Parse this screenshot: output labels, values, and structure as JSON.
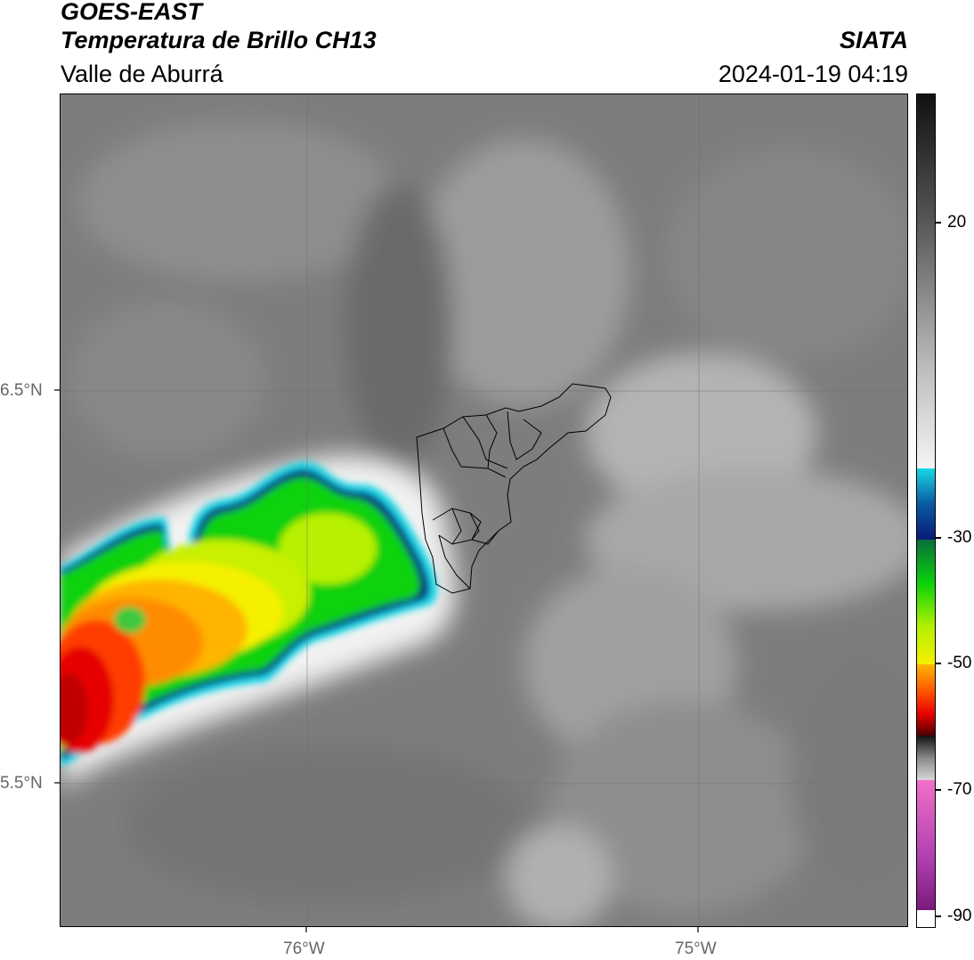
{
  "header": {
    "satellite": "GOES-EAST",
    "product": "Temperatura de Brillo CH13",
    "region": "Valle de Aburrá",
    "organization": "SIATA",
    "timestamp": "2024-01-19 04:19"
  },
  "map": {
    "lat_labels": [
      "6.5°N",
      "5.5°N"
    ],
    "lon_labels": [
      "76°W",
      "75°W"
    ]
  },
  "colorbar": {
    "ticks": [
      "20",
      "-30",
      "-50",
      "-70",
      "-90"
    ],
    "colors": {
      "cyan": "#19d7e6",
      "dark_blue": "#0a1a78",
      "green": "#0ad20a",
      "yellow": "#f5f000",
      "orange": "#ff8c00",
      "red": "#e60000",
      "dark_red": "#4a0000",
      "magenta": "#b040b0"
    }
  }
}
